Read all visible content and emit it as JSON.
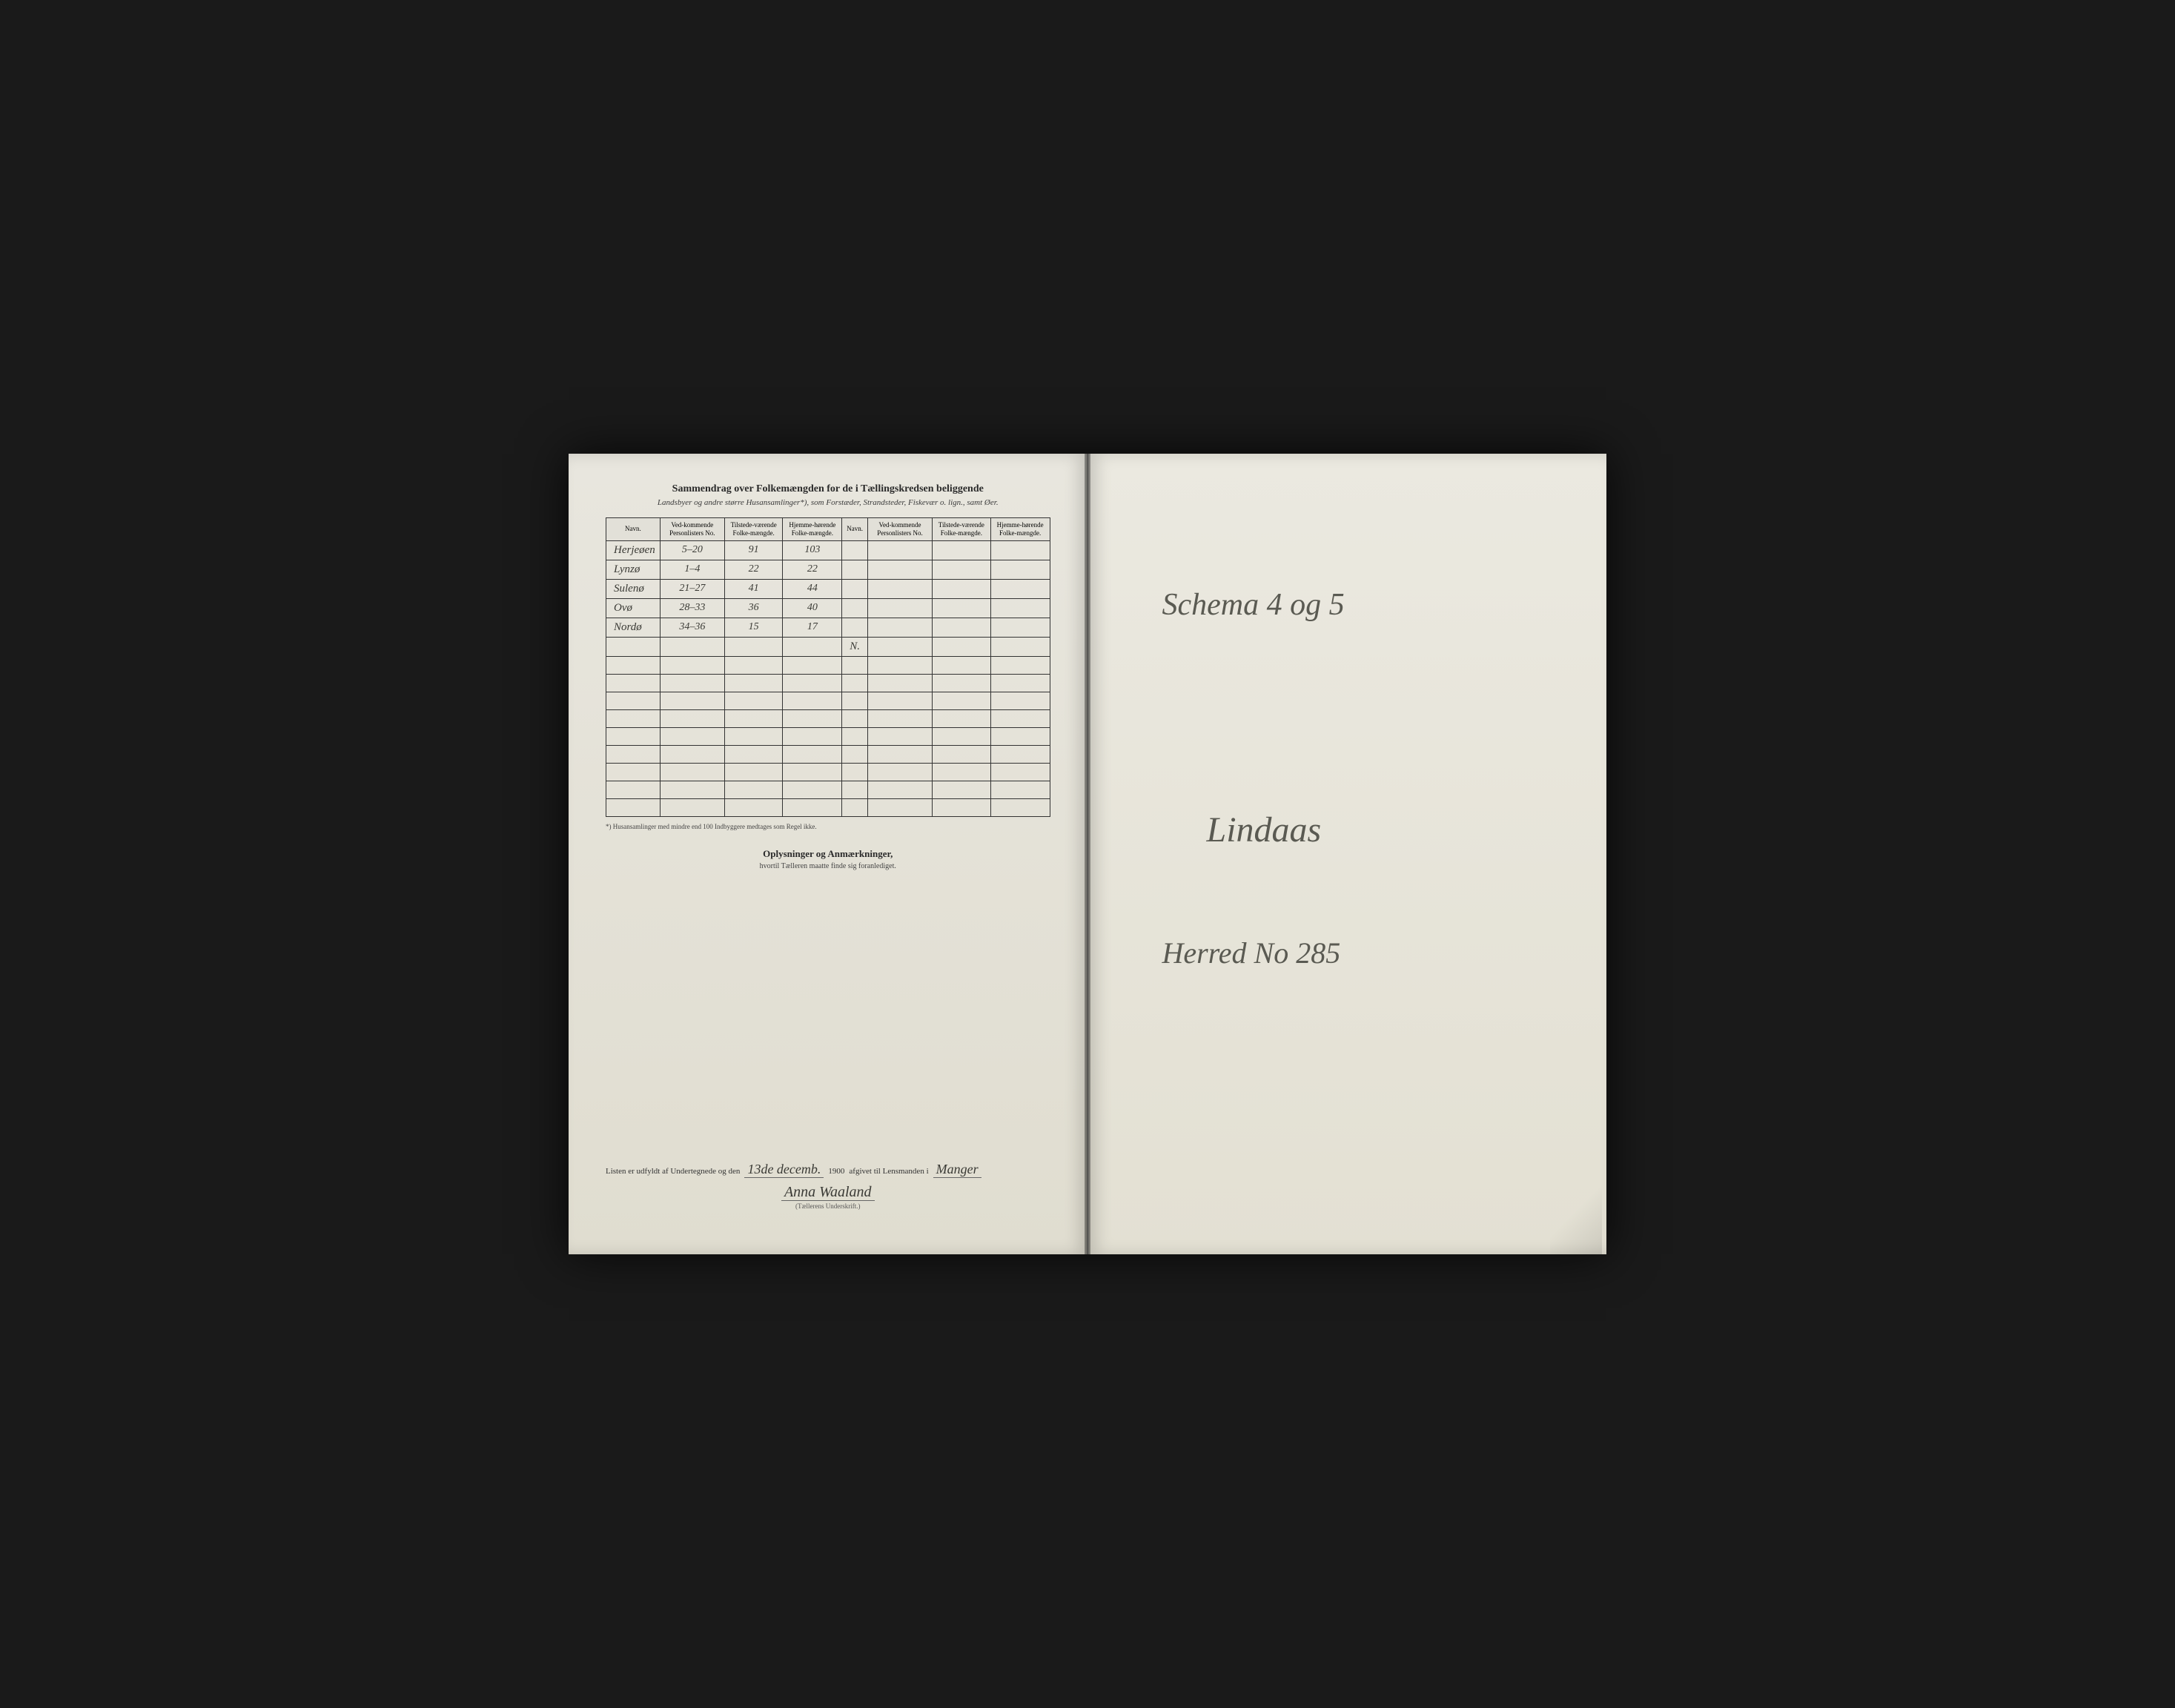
{
  "leftPage": {
    "title": "Sammendrag over Folkemængden for de i Tællingskredsen beliggende",
    "subtitle": "Landsbyer og andre større Husansamlinger*), som Forstæder, Strandsteder, Fiskevær o. lign., samt Øer.",
    "columns": {
      "name": "Navn.",
      "listNo": "Ved-kommende Personlisters No.",
      "present": "Tilstede-værende Folke-mængde.",
      "resident": "Hjemme-hørende Folke-mængde."
    },
    "rows": [
      {
        "name": "Herjeøen",
        "listNo": "5–20",
        "present": "91",
        "resident": "103"
      },
      {
        "name": "Lynzø",
        "listNo": "1–4",
        "present": "22",
        "resident": "22"
      },
      {
        "name": "Sulenø",
        "listNo": "21–27",
        "present": "41",
        "resident": "44"
      },
      {
        "name": "Ovø",
        "listNo": "28–33",
        "present": "36",
        "resident": "40"
      },
      {
        "name": "Nordø",
        "listNo": "34–36",
        "present": "15",
        "resident": "17"
      }
    ],
    "emptyRows": 10,
    "noteMark": "N.",
    "footnote": "*) Husansamlinger med mindre end 100 Indbyggere medtages som Regel ikke.",
    "sectionTitle": "Oplysninger og Anmærkninger,",
    "sectionSub": "hvortil Tælleren maatte finde sig foranlediget.",
    "signature": {
      "prefix": "Listen er udfyldt af Undertegnede og den",
      "date": "13de decemb.",
      "year": "1900",
      "middle": "afgivet til Lensmanden i",
      "place": "Manger",
      "name": "Anna Waaland",
      "caption": "(Tællerens Underskrift.)"
    }
  },
  "rightPage": {
    "line1": "Schema 4 og 5",
    "line2": "Lindaas",
    "line3": "Herred No 285"
  },
  "colors": {
    "bg": "#1a1a1a",
    "paper": "#e8e6de",
    "ink": "#2a2a2a",
    "handInk": "#3a3a35",
    "rightInk": "#5a5a52"
  }
}
